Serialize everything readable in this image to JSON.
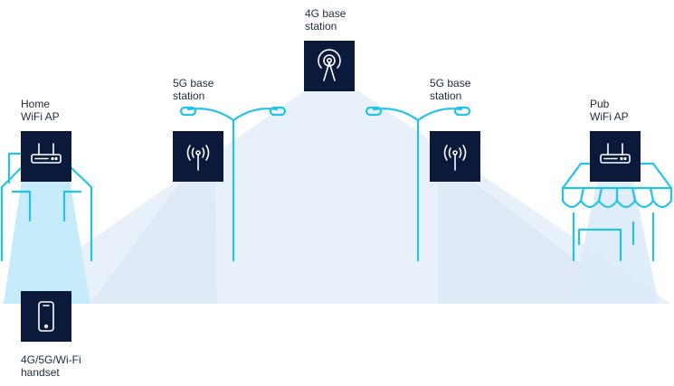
{
  "labels": {
    "bs4g": "4G base\nstation",
    "bs5g_left": "5G base\nstation",
    "bs5g_right": "5G base\nstation",
    "home_ap": "Home\nWiFi AP",
    "pub_ap": "Pub\nWiFi AP",
    "handset": "4G/5G/Wi-Fi\nhandset"
  },
  "icons": {
    "bs4g": "cell-tower-icon",
    "bs5g_left": "antenna-icon",
    "bs5g_right": "antenna-icon",
    "home_ap": "wifi-router-icon",
    "pub_ap": "wifi-router-icon",
    "handset": "smartphone-icon"
  },
  "colors": {
    "node_fill": "#0b1a3a",
    "structure_line": "#22c3e6",
    "coverage_light": "#eaf1fb",
    "coverage_wifi": "#c9ecfb"
  }
}
